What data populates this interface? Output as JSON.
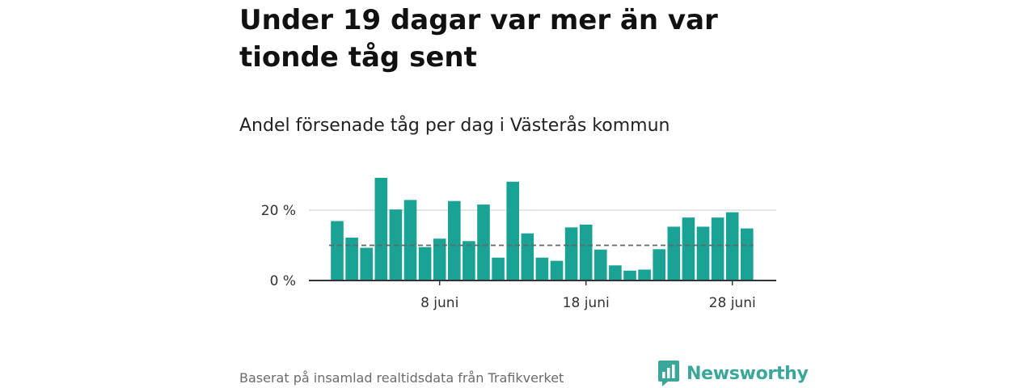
{
  "title": "Under 19 dagar var mer än var tionde tåg sent",
  "subtitle": "Andel försenade tåg per dag i Västerås kommun",
  "source": "Baserat på insamlad realtidsdata från Trafikverket",
  "logo": {
    "text": "Newsworthy",
    "icon": "bar-chart-speech-bubble-icon"
  },
  "colors": {
    "bar": "#1aa395",
    "reference_line": "#666666",
    "grid": "#dddddd",
    "axis": "#333333",
    "logo": "#3aa79a"
  },
  "chart_data": {
    "type": "bar",
    "ylabel": "",
    "ylim": [
      0,
      30
    ],
    "y_ticks": [
      {
        "value": 0,
        "label": "0 %"
      },
      {
        "value": 20,
        "label": "20 %"
      }
    ],
    "x_ticks": [
      {
        "day": 8,
        "label": "8 juni"
      },
      {
        "day": 18,
        "label": "18 juni"
      },
      {
        "day": 28,
        "label": "28 juni"
      }
    ],
    "reference_line": {
      "value": 10,
      "style": "dashed"
    },
    "categories": [
      "1 juni",
      "2 juni",
      "3 juni",
      "4 juni",
      "5 juni",
      "6 juni",
      "7 juni",
      "8 juni",
      "9 juni",
      "10 juni",
      "11 juni",
      "12 juni",
      "13 juni",
      "14 juni",
      "15 juni",
      "16 juni",
      "17 juni",
      "18 juni",
      "19 juni",
      "20 juni",
      "21 juni",
      "22 juni",
      "23 juni",
      "24 juni",
      "25 juni",
      "26 juni",
      "27 juni",
      "28 juni",
      "29 juni"
    ],
    "values": [
      16.9,
      12.2,
      9.3,
      29.2,
      20.2,
      22.9,
      9.5,
      11.9,
      22.6,
      11.2,
      21.6,
      6.5,
      28.1,
      13.4,
      6.5,
      5.6,
      15.1,
      15.9,
      8.8,
      4.3,
      2.8,
      3.1,
      8.9,
      15.3,
      17.9,
      15.3,
      17.9,
      19.4,
      14.8
    ],
    "grid": true
  }
}
